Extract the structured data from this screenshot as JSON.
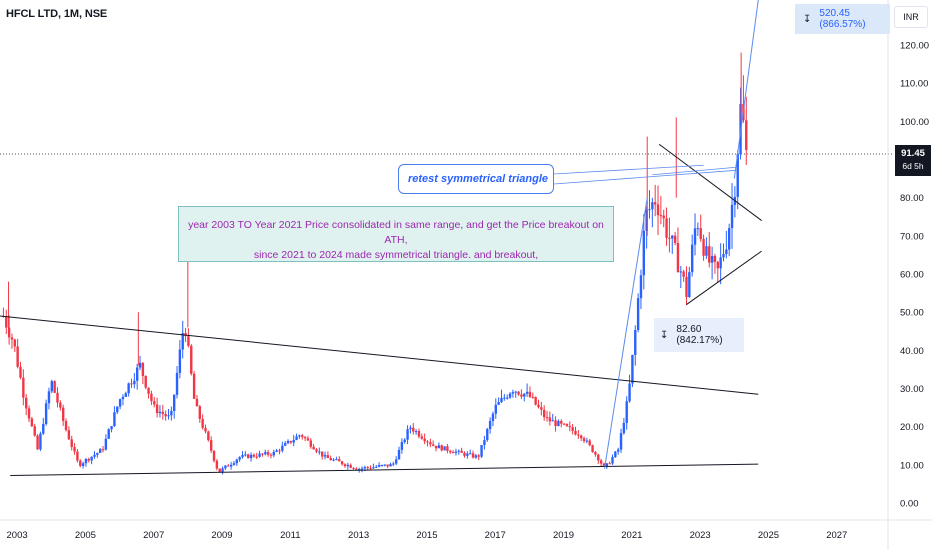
{
  "header": {
    "title": "HFCL LTD, 1M, NSE"
  },
  "currency": "INR",
  "last_price": {
    "value": "91.45",
    "countdown": "6d 5h"
  },
  "measure_top": {
    "label": "520.45 (866.57%)"
  },
  "measure_mid": {
    "label": "82.60 (842.17%)"
  },
  "notes": {
    "retest": "retest symmetrical triangle",
    "consolidation_line1": "year 2003 TO Year 2021 Price consolidated in same range, and get the Price breakout on ATH,",
    "consolidation_line2": "since 2021 to 2024  made symmetrical triangle. and breakout,"
  },
  "colors": {
    "up": "#2962ff",
    "down": "#f23645",
    "trendline": "#131722",
    "drawing": "#5b8af0",
    "note_text": "#9c27b0"
  },
  "chart_data": {
    "type": "candlestick",
    "y_axis": {
      "min": 0,
      "max": 120,
      "ticks": [
        "0.00",
        "10.00",
        "20.00",
        "30.00",
        "40.00",
        "50.00",
        "60.00",
        "70.00",
        "80.00",
        "90.00",
        "100.00",
        "110.00",
        "120.00"
      ]
    },
    "x_axis": {
      "range": [
        2002.5,
        2028.5
      ],
      "ticks": [
        "2003",
        "2005",
        "2007",
        "2009",
        "2011",
        "2013",
        "2015",
        "2017",
        "2019",
        "2021",
        "2023",
        "2025",
        "2027"
      ]
    },
    "price_line": 91.45,
    "key_points": [
      {
        "x": 2002.6,
        "y": 49
      },
      {
        "x": 2002.9,
        "y": 42
      },
      {
        "x": 2003.2,
        "y": 28
      },
      {
        "x": 2003.6,
        "y": 14
      },
      {
        "x": 2004.0,
        "y": 32
      },
      {
        "x": 2004.4,
        "y": 20
      },
      {
        "x": 2004.8,
        "y": 10
      },
      {
        "x": 2005.5,
        "y": 14
      },
      {
        "x": 2006.0,
        "y": 27
      },
      {
        "x": 2006.6,
        "y": 36
      },
      {
        "x": 2007.0,
        "y": 25
      },
      {
        "x": 2007.5,
        "y": 22
      },
      {
        "x": 2007.9,
        "y": 48
      },
      {
        "x": 2008.2,
        "y": 26
      },
      {
        "x": 2008.6,
        "y": 16
      },
      {
        "x": 2008.9,
        "y": 8
      },
      {
        "x": 2009.5,
        "y": 12
      },
      {
        "x": 2010.5,
        "y": 13
      },
      {
        "x": 2011.3,
        "y": 18
      },
      {
        "x": 2012.0,
        "y": 12
      },
      {
        "x": 2013.0,
        "y": 9
      },
      {
        "x": 2014.0,
        "y": 10
      },
      {
        "x": 2014.5,
        "y": 20
      },
      {
        "x": 2015.2,
        "y": 15
      },
      {
        "x": 2016.0,
        "y": 13
      },
      {
        "x": 2016.5,
        "y": 12
      },
      {
        "x": 2017.0,
        "y": 25
      },
      {
        "x": 2017.5,
        "y": 30
      },
      {
        "x": 2018.0,
        "y": 28
      },
      {
        "x": 2018.5,
        "y": 22
      },
      {
        "x": 2019.0,
        "y": 20
      },
      {
        "x": 2019.5,
        "y": 18
      },
      {
        "x": 2020.0,
        "y": 12
      },
      {
        "x": 2020.2,
        "y": 9
      },
      {
        "x": 2020.6,
        "y": 14
      },
      {
        "x": 2020.9,
        "y": 28
      },
      {
        "x": 2021.1,
        "y": 45
      },
      {
        "x": 2021.4,
        "y": 75
      },
      {
        "x": 2021.7,
        "y": 80
      },
      {
        "x": 2022.0,
        "y": 72
      },
      {
        "x": 2022.4,
        "y": 62
      },
      {
        "x": 2022.6,
        "y": 55
      },
      {
        "x": 2022.9,
        "y": 75
      },
      {
        "x": 2023.2,
        "y": 64
      },
      {
        "x": 2023.5,
        "y": 60
      },
      {
        "x": 2023.8,
        "y": 70
      },
      {
        "x": 2024.0,
        "y": 82
      },
      {
        "x": 2024.2,
        "y": 105
      },
      {
        "x": 2024.35,
        "y": 91.45
      }
    ],
    "trendlines": [
      {
        "name": "falling-resistance",
        "from": [
          2002.5,
          49
        ],
        "to": [
          2024.7,
          28.5
        ]
      },
      {
        "name": "rising-support",
        "from": [
          2002.8,
          7.2
        ],
        "to": [
          2024.7,
          10.2
        ]
      },
      {
        "name": "triangle-upper",
        "from": [
          2021.8,
          94
        ],
        "to": [
          2024.8,
          74
        ]
      },
      {
        "name": "triangle-lower",
        "from": [
          2022.6,
          52
        ],
        "to": [
          2024.8,
          66
        ]
      }
    ]
  }
}
